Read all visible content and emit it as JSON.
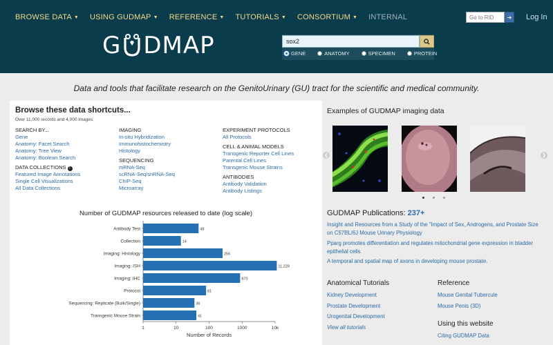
{
  "nav": {
    "items": [
      "BROWSE DATA",
      "USING GUDMAP",
      "REFERENCE",
      "TUTORIALS",
      "CONSORTIUM"
    ],
    "internal": "INTERNAL",
    "rid_placeholder": "Go to RID",
    "login": "Log In"
  },
  "logo": {
    "text_left": "G",
    "text_right": "DMAP"
  },
  "search": {
    "value": "sox2",
    "options": [
      "GENE",
      "ANATOMY",
      "SPECIMEN",
      "PROTEIN"
    ],
    "selected": "GENE"
  },
  "tagline": "Data and tools that facilitate research on the GenitoUrinary (GU) tract for the scientific and medical community.",
  "shortcuts": {
    "title": "Browse these data shortcuts...",
    "subtitle": "Over 11,000 records and 4,000 images",
    "col1": {
      "search_heading": "SEARCH BY...",
      "search_links": [
        "Gene",
        "Anatomy: Facet Search",
        "Anatomy: Tree View",
        "Anatomy: Boolean Search"
      ],
      "collections_heading": "DATA COLLECTIONS",
      "collections_links": [
        "Featured Image Annotations",
        "Single Cell Visualizations",
        "All Data Collections"
      ]
    },
    "col2": {
      "imaging_heading": "IMAGING",
      "imaging_links": [
        "In-situ Hybridization",
        "Immunohistochemistry",
        "Histology"
      ],
      "sequencing_heading": "SEQUENCING",
      "sequencing_links": [
        "mRNA-Seq",
        "scRNA-Seq/snRNA-Seq",
        "ChIP-Seq",
        "Microarray"
      ]
    },
    "col3": {
      "protocols_heading": "EXPERIMENT PROTOCOLS",
      "protocols_links": [
        "All Protocols"
      ],
      "models_heading": "CELL & ANIMAL MODELS",
      "models_links": [
        "Transgenic Reporter Cell Lines",
        "Parental Cell Lines",
        "Transgenic Mouse Strains"
      ],
      "antibodies_heading": "ANTIBODIES",
      "antibodies_links": [
        "Antibody Validation",
        "Antibody Listings"
      ]
    }
  },
  "chart_data": {
    "type": "bar",
    "orientation": "horizontal",
    "title": "Number of GUDMAP resources released to date (log scale)",
    "xlabel": "Number of Records",
    "xscale": "log",
    "xlim": [
      1,
      10000
    ],
    "xticks": [
      "1",
      "10",
      "100",
      "1000",
      "10k"
    ],
    "categories": [
      "Antibody Test",
      "Collection",
      "Imaging: Histology",
      "Imaging: ISH",
      "Imaging: IHC",
      "Protocol",
      "Sequencing: Replicate (Bulk/Single)",
      "Transgenic Mouse Strain"
    ],
    "values": [
      48,
      14,
      256,
      11228,
      870,
      81,
      36,
      41
    ],
    "value_labels": [
      "48",
      "14",
      "256",
      "11,228",
      "870",
      "81",
      "36",
      "41"
    ],
    "bar_color": "#2470b3"
  },
  "imaging": {
    "title": "Examples of GUDMAP imaging data"
  },
  "publications": {
    "title": "GUDMAP Publications:",
    "count": "237+",
    "items": [
      "Insight and Resources from a Study of the \"Impact of Sex, Androgens, and Prostate Size on C57BL/6J Mouse Urinary Physiology",
      "Pparg promotes differentiation and regulates mitochondrial gene expression in bladder epithelial cells",
      "A temporal and spatial map of axons in developing mouse prostate."
    ]
  },
  "tutorials": {
    "title": "Anatomical Tutorials",
    "links": [
      "Kidney Development",
      "Prostate Development",
      "Urogenital Development"
    ],
    "view_all": "View all tutorials"
  },
  "reference": {
    "title": "Reference",
    "links": [
      "Mouse Genital Tubercule",
      "Mouse Penis (3D)"
    ]
  },
  "using": {
    "title": "Using this website",
    "links": [
      "Citing GUDMAP Data"
    ]
  }
}
